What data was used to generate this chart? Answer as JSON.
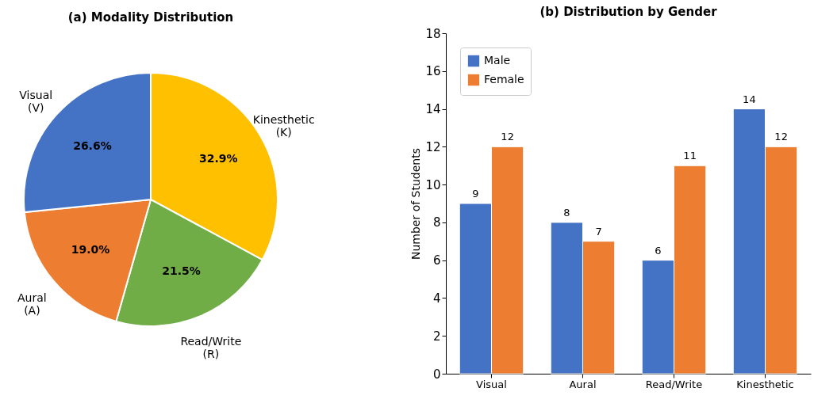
{
  "chart_data": [
    {
      "type": "pie",
      "title": "(a) Modality Distribution",
      "categories": [
        "Kinesthetic\n(K)",
        "Read/Write\n(R)",
        "Aural\n(A)",
        "Visual\n(V)"
      ],
      "values": [
        32.9,
        21.5,
        19.0,
        26.6
      ],
      "value_labels": [
        "32.9%",
        "21.5%",
        "19.0%",
        "26.6%"
      ],
      "colors": [
        "#ffc000",
        "#70ad47",
        "#ed7d31",
        "#4472c4"
      ]
    },
    {
      "type": "bar",
      "title": "(b) Distribution by Gender",
      "categories": [
        "Visual",
        "Aural",
        "Read/Write",
        "Kinesthetic"
      ],
      "ylabel": "Number of Students",
      "series": [
        {
          "name": "Male",
          "color": "#4472c4",
          "values": [
            9,
            8,
            6,
            14
          ]
        },
        {
          "name": "Female",
          "color": "#ed7d31",
          "values": [
            12,
            7,
            11,
            12
          ]
        }
      ],
      "ylim": [
        0,
        18
      ],
      "yticks": [
        0,
        2,
        4,
        6,
        8,
        10,
        12,
        14,
        16,
        18
      ],
      "data_labels": true,
      "legend": "top left"
    }
  ]
}
